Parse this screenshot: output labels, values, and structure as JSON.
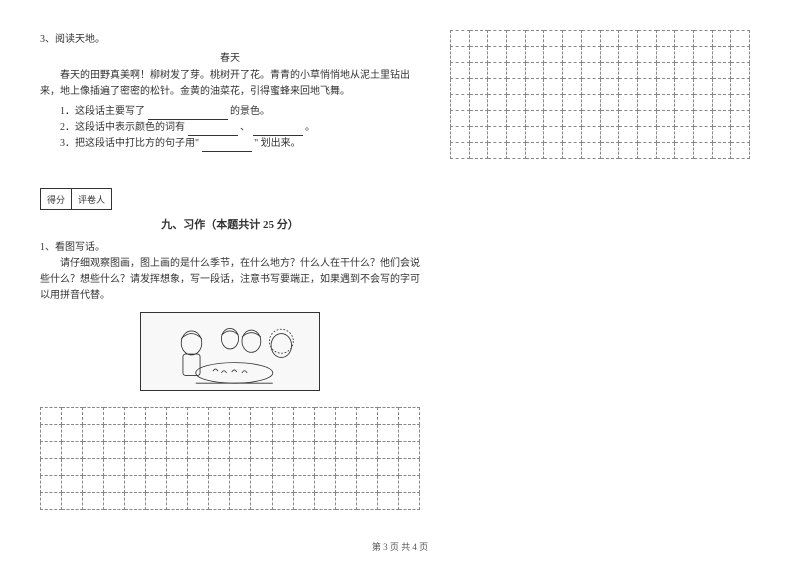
{
  "reading": {
    "number": "3、阅读天地。",
    "title": "春天",
    "passage": "春天的田野真美啊！柳树发了芽。桃树开了花。青青的小草悄悄地从泥土里钻出来，地上像插遍了密密的松针。金黄的油菜花，引得蜜蜂来回地飞舞。",
    "q1_prefix": "1．这段话主要写了",
    "q1_suffix": "的景色。",
    "q2_prefix": "2．这段话中表示颜色的词有",
    "q2_sep": "、",
    "q2_end": "。",
    "q3_prefix": "3．把这段话中打比方的句子用\"",
    "q3_suffix": "\" 划出来。"
  },
  "scorebox": {
    "label1": "得分",
    "label2": "评卷人"
  },
  "writing": {
    "section_title": "九、习作（本题共计 25 分）",
    "item_num": "1、看图写话。",
    "prompt": "请仔细观察图画，图上画的是什么季节，在什么地方？什么人在干什么？他们会说些什么？想些什么？请发挥想象，写一段话，注意书写要端正，如果遇到不会写的字可以用拼音代替。"
  },
  "grids": {
    "left_rows": 6,
    "left_cols": 18,
    "right_rows": 8,
    "right_cols": 16
  },
  "footer": "第 3 页 共 4 页",
  "colors": {
    "text": "#333333",
    "grid_border": "#888888",
    "bg": "#ffffff"
  }
}
